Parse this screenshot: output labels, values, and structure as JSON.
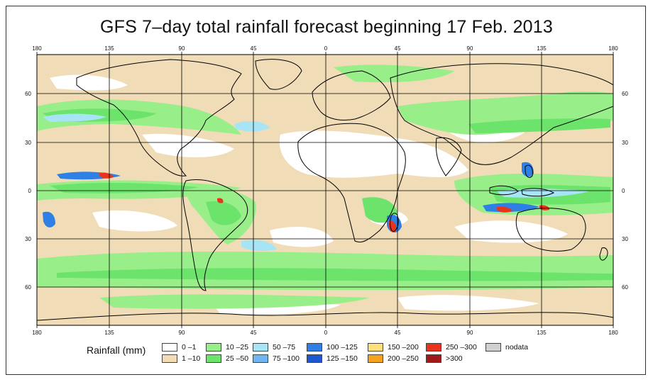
{
  "title": "GFS 7–day total rainfall forecast beginning 17 Feb. 2013",
  "colors": {
    "ocean_dry": "#ffffff",
    "land_border": "#000000",
    "grid": "#000000",
    "r0_1": "#ffffff",
    "r1_10": "#f0dcb6",
    "r10_25": "#98ee88",
    "r25_50": "#6ce46c",
    "r50_75": "#a6e4f6",
    "r75_100": "#6fb6f0",
    "r100_125": "#2e80e6",
    "r125_150": "#1c58d0",
    "r150_200": "#fde07a",
    "r200_250": "#f5a21c",
    "r250_300": "#e8341c",
    "r300plus": "#a01818",
    "nodata": "#d0d0d0"
  },
  "axes": {
    "longitude_labels": [
      "180",
      "135",
      "90",
      "45",
      "0",
      "45",
      "90",
      "135",
      "180"
    ],
    "latitude_labels": [
      "60",
      "30",
      "0",
      "30",
      "60"
    ]
  },
  "legend": {
    "title": "Rainfall (mm)",
    "items": [
      {
        "label": "0 –1",
        "color": "#ffffff"
      },
      {
        "label": "1 –10",
        "color": "#f0dcb6"
      },
      {
        "label": "10 –25",
        "color": "#98ee88"
      },
      {
        "label": "25 –50",
        "color": "#6ce46c"
      },
      {
        "label": "50 –75",
        "color": "#a6e4f6"
      },
      {
        "label": "75 –100",
        "color": "#6fb6f0"
      },
      {
        "label": "100 –125",
        "color": "#2e80e6"
      },
      {
        "label": "125 –150",
        "color": "#1c58d0"
      },
      {
        "label": "150 –200",
        "color": "#fde07a"
      },
      {
        "label": "200 –250",
        "color": "#f5a21c"
      },
      {
        "label": "250 –300",
        "color": "#e8341c"
      },
      {
        "label": ">300",
        "color": "#a01818"
      },
      {
        "label": "nodata",
        "color": "#d0d0d0"
      }
    ]
  }
}
